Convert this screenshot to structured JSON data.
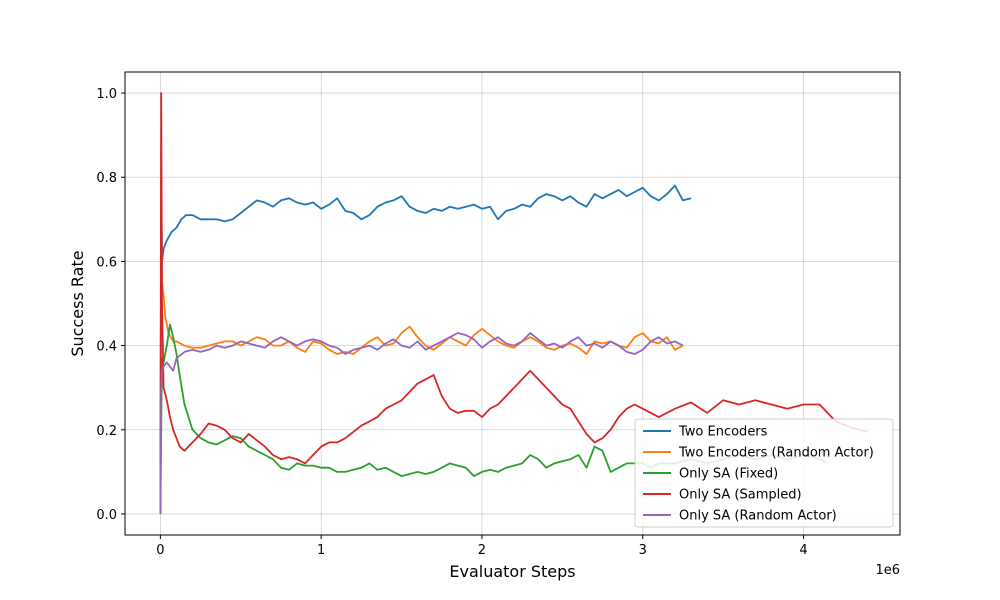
{
  "chart_data": {
    "type": "line",
    "title": "",
    "xlabel": "Evaluator Steps",
    "ylabel": "Success Rate",
    "x_offset_label": "1e6",
    "xlim": [
      -0.22,
      4.6
    ],
    "ylim": [
      -0.05,
      1.05
    ],
    "xticks": [
      0,
      1,
      2,
      3,
      4
    ],
    "xtick_labels": [
      "0",
      "1",
      "2",
      "3",
      "4"
    ],
    "yticks": [
      0.0,
      0.2,
      0.4,
      0.6,
      0.8,
      1.0
    ],
    "ytick_labels": [
      "0.0",
      "0.2",
      "0.4",
      "0.6",
      "0.8",
      "1.0"
    ],
    "grid": true,
    "legend_position": "lower-right",
    "series": [
      {
        "name": "Two Encoders",
        "color": "#1f77b4",
        "x": [
          0,
          0.005,
          0.01,
          0.02,
          0.04,
          0.07,
          0.1,
          0.13,
          0.16,
          0.2,
          0.25,
          0.3,
          0.35,
          0.4,
          0.45,
          0.5,
          0.55,
          0.6,
          0.65,
          0.7,
          0.75,
          0.8,
          0.85,
          0.9,
          0.95,
          1.0,
          1.05,
          1.1,
          1.15,
          1.2,
          1.25,
          1.3,
          1.35,
          1.4,
          1.45,
          1.5,
          1.55,
          1.6,
          1.65,
          1.7,
          1.75,
          1.8,
          1.85,
          1.9,
          1.95,
          2.0,
          2.05,
          2.1,
          2.15,
          2.2,
          2.25,
          2.3,
          2.35,
          2.4,
          2.45,
          2.5,
          2.55,
          2.6,
          2.65,
          2.7,
          2.75,
          2.8,
          2.85,
          2.9,
          2.95,
          3.0,
          3.05,
          3.1,
          3.15,
          3.2,
          3.25,
          3.3
        ],
        "y": [
          0.0,
          0.8,
          0.6,
          0.63,
          0.65,
          0.67,
          0.68,
          0.7,
          0.71,
          0.71,
          0.7,
          0.7,
          0.7,
          0.695,
          0.7,
          0.715,
          0.73,
          0.745,
          0.74,
          0.73,
          0.745,
          0.75,
          0.74,
          0.735,
          0.74,
          0.725,
          0.735,
          0.75,
          0.72,
          0.715,
          0.7,
          0.71,
          0.73,
          0.74,
          0.745,
          0.755,
          0.73,
          0.72,
          0.715,
          0.725,
          0.72,
          0.73,
          0.725,
          0.73,
          0.735,
          0.725,
          0.73,
          0.7,
          0.72,
          0.725,
          0.735,
          0.73,
          0.75,
          0.76,
          0.755,
          0.745,
          0.755,
          0.74,
          0.73,
          0.76,
          0.75,
          0.76,
          0.77,
          0.755,
          0.765,
          0.775,
          0.755,
          0.745,
          0.76,
          0.78,
          0.745,
          0.75
        ]
      },
      {
        "name": "Two Encoders (Random Actor)",
        "color": "#ff7f0e",
        "x": [
          0,
          0.005,
          0.01,
          0.02,
          0.03,
          0.05,
          0.08,
          0.1,
          0.15,
          0.2,
          0.25,
          0.3,
          0.35,
          0.4,
          0.45,
          0.5,
          0.55,
          0.6,
          0.65,
          0.7,
          0.75,
          0.8,
          0.85,
          0.9,
          0.95,
          1.0,
          1.05,
          1.1,
          1.15,
          1.2,
          1.25,
          1.3,
          1.35,
          1.4,
          1.45,
          1.5,
          1.55,
          1.6,
          1.65,
          1.7,
          1.75,
          1.8,
          1.85,
          1.9,
          1.95,
          2.0,
          2.05,
          2.1,
          2.15,
          2.2,
          2.25,
          2.3,
          2.35,
          2.4,
          2.45,
          2.5,
          2.55,
          2.6,
          2.65,
          2.7,
          2.75,
          2.8,
          2.85,
          2.9,
          2.95,
          3.0,
          3.05,
          3.1,
          3.15,
          3.2,
          3.25
        ],
        "y": [
          0.0,
          0.8,
          0.55,
          0.52,
          0.47,
          0.43,
          0.41,
          0.41,
          0.4,
          0.395,
          0.395,
          0.4,
          0.405,
          0.41,
          0.41,
          0.4,
          0.41,
          0.42,
          0.415,
          0.4,
          0.4,
          0.41,
          0.395,
          0.385,
          0.41,
          0.405,
          0.39,
          0.38,
          0.385,
          0.38,
          0.395,
          0.41,
          0.42,
          0.4,
          0.405,
          0.43,
          0.445,
          0.42,
          0.4,
          0.39,
          0.405,
          0.42,
          0.41,
          0.4,
          0.425,
          0.44,
          0.425,
          0.41,
          0.4,
          0.395,
          0.41,
          0.42,
          0.41,
          0.395,
          0.39,
          0.4,
          0.405,
          0.395,
          0.38,
          0.41,
          0.405,
          0.41,
          0.4,
          0.395,
          0.42,
          0.43,
          0.41,
          0.405,
          0.42,
          0.39,
          0.4
        ]
      },
      {
        "name": "Only SA (Fixed)",
        "color": "#2ca02c",
        "x": [
          0,
          0.005,
          0.01,
          0.02,
          0.04,
          0.06,
          0.08,
          0.1,
          0.12,
          0.15,
          0.2,
          0.25,
          0.3,
          0.35,
          0.4,
          0.45,
          0.5,
          0.55,
          0.6,
          0.65,
          0.7,
          0.75,
          0.8,
          0.85,
          0.9,
          0.95,
          1.0,
          1.05,
          1.1,
          1.15,
          1.2,
          1.25,
          1.3,
          1.35,
          1.4,
          1.45,
          1.5,
          1.55,
          1.6,
          1.65,
          1.7,
          1.75,
          1.8,
          1.85,
          1.9,
          1.95,
          2.0,
          2.05,
          2.1,
          2.15,
          2.2,
          2.25,
          2.3,
          2.35,
          2.4,
          2.45,
          2.5,
          2.55,
          2.6,
          2.65,
          2.7,
          2.75,
          2.8,
          2.85,
          2.9,
          2.95,
          3.0,
          3.05,
          3.1,
          3.2,
          3.3,
          3.4,
          3.5,
          3.6,
          3.7,
          3.8,
          3.9,
          4.0,
          4.1,
          4.15
        ],
        "y": [
          0.0,
          0.2,
          0.37,
          0.36,
          0.4,
          0.45,
          0.42,
          0.38,
          0.33,
          0.26,
          0.2,
          0.18,
          0.17,
          0.165,
          0.175,
          0.185,
          0.18,
          0.16,
          0.15,
          0.14,
          0.13,
          0.11,
          0.105,
          0.12,
          0.115,
          0.115,
          0.11,
          0.11,
          0.1,
          0.1,
          0.105,
          0.11,
          0.12,
          0.105,
          0.11,
          0.1,
          0.09,
          0.095,
          0.1,
          0.095,
          0.1,
          0.11,
          0.12,
          0.115,
          0.11,
          0.09,
          0.1,
          0.105,
          0.1,
          0.11,
          0.115,
          0.12,
          0.14,
          0.13,
          0.11,
          0.12,
          0.125,
          0.13,
          0.14,
          0.11,
          0.16,
          0.15,
          0.1,
          0.11,
          0.12,
          0.12,
          0.12,
          0.11,
          0.12,
          0.12,
          0.13,
          0.12,
          0.13,
          0.14,
          0.13,
          0.14,
          0.13,
          0.14,
          0.13,
          0.12
        ]
      },
      {
        "name": "Only SA (Sampled)",
        "color": "#d62728",
        "x": [
          0,
          0.005,
          0.01,
          0.02,
          0.04,
          0.06,
          0.08,
          0.1,
          0.12,
          0.15,
          0.2,
          0.25,
          0.3,
          0.35,
          0.4,
          0.45,
          0.5,
          0.55,
          0.6,
          0.65,
          0.7,
          0.75,
          0.8,
          0.85,
          0.9,
          0.95,
          1.0,
          1.05,
          1.1,
          1.15,
          1.2,
          1.25,
          1.3,
          1.35,
          1.4,
          1.45,
          1.5,
          1.55,
          1.6,
          1.65,
          1.7,
          1.75,
          1.8,
          1.85,
          1.9,
          1.95,
          2.0,
          2.05,
          2.1,
          2.15,
          2.2,
          2.25,
          2.3,
          2.35,
          2.4,
          2.45,
          2.5,
          2.55,
          2.6,
          2.65,
          2.7,
          2.75,
          2.8,
          2.85,
          2.9,
          2.95,
          3.0,
          3.1,
          3.2,
          3.3,
          3.4,
          3.5,
          3.6,
          3.7,
          3.8,
          3.9,
          4.0,
          4.1,
          4.2,
          4.3,
          4.4
        ],
        "y": [
          0.0,
          1.0,
          0.5,
          0.3,
          0.27,
          0.23,
          0.2,
          0.18,
          0.16,
          0.15,
          0.17,
          0.19,
          0.215,
          0.21,
          0.2,
          0.18,
          0.17,
          0.19,
          0.175,
          0.16,
          0.14,
          0.13,
          0.135,
          0.13,
          0.12,
          0.14,
          0.16,
          0.17,
          0.17,
          0.18,
          0.195,
          0.21,
          0.22,
          0.23,
          0.25,
          0.26,
          0.27,
          0.29,
          0.31,
          0.32,
          0.33,
          0.28,
          0.25,
          0.24,
          0.245,
          0.245,
          0.23,
          0.25,
          0.26,
          0.28,
          0.3,
          0.32,
          0.34,
          0.32,
          0.3,
          0.28,
          0.26,
          0.25,
          0.22,
          0.19,
          0.17,
          0.18,
          0.2,
          0.23,
          0.25,
          0.26,
          0.25,
          0.23,
          0.25,
          0.265,
          0.24,
          0.27,
          0.26,
          0.27,
          0.26,
          0.25,
          0.26,
          0.26,
          0.22,
          0.205,
          0.195
        ]
      },
      {
        "name": "Only SA (Random Actor)",
        "color": "#9467bd",
        "x": [
          0,
          0.005,
          0.01,
          0.02,
          0.04,
          0.06,
          0.08,
          0.1,
          0.15,
          0.2,
          0.25,
          0.3,
          0.35,
          0.4,
          0.45,
          0.5,
          0.55,
          0.6,
          0.65,
          0.7,
          0.75,
          0.8,
          0.85,
          0.9,
          0.95,
          1.0,
          1.05,
          1.1,
          1.15,
          1.2,
          1.25,
          1.3,
          1.35,
          1.4,
          1.45,
          1.5,
          1.55,
          1.6,
          1.65,
          1.7,
          1.75,
          1.8,
          1.85,
          1.9,
          1.95,
          2.0,
          2.05,
          2.1,
          2.15,
          2.2,
          2.25,
          2.3,
          2.35,
          2.4,
          2.45,
          2.5,
          2.55,
          2.6,
          2.65,
          2.7,
          2.75,
          2.8,
          2.85,
          2.9,
          2.95,
          3.0,
          3.05,
          3.1,
          3.15,
          3.2,
          3.25
        ],
        "y": [
          0.0,
          0.3,
          0.34,
          0.35,
          0.36,
          0.35,
          0.34,
          0.37,
          0.385,
          0.39,
          0.385,
          0.39,
          0.4,
          0.395,
          0.4,
          0.41,
          0.405,
          0.4,
          0.395,
          0.41,
          0.42,
          0.41,
          0.4,
          0.41,
          0.415,
          0.41,
          0.4,
          0.395,
          0.38,
          0.39,
          0.395,
          0.4,
          0.39,
          0.405,
          0.415,
          0.4,
          0.395,
          0.41,
          0.39,
          0.4,
          0.41,
          0.42,
          0.43,
          0.425,
          0.415,
          0.395,
          0.41,
          0.42,
          0.405,
          0.4,
          0.41,
          0.43,
          0.415,
          0.4,
          0.405,
          0.395,
          0.41,
          0.42,
          0.4,
          0.405,
          0.395,
          0.41,
          0.4,
          0.385,
          0.38,
          0.39,
          0.41,
          0.42,
          0.405,
          0.41,
          0.4
        ]
      }
    ]
  }
}
